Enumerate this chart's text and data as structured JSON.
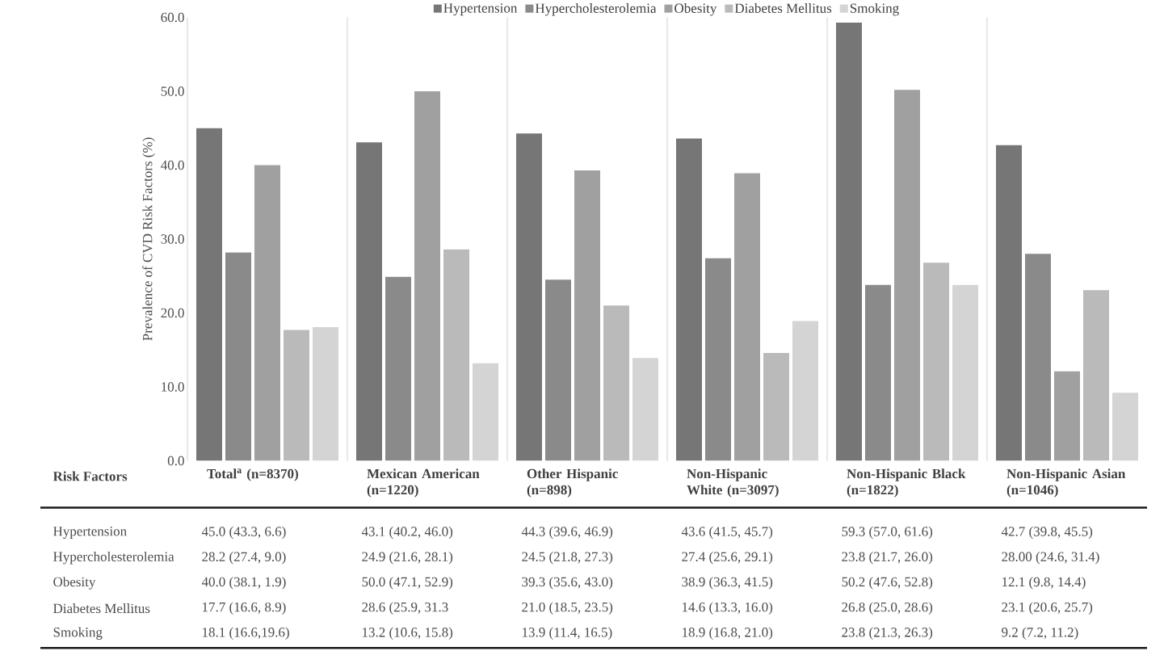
{
  "chart_data": {
    "type": "bar",
    "ylabel": "Prevalence of CVD Risk Factors (%)",
    "categories": [
      "Total$^{a}$ (n=8370)",
      "Mexican American (n=1220)",
      "Other Hispanic (n=898)",
      "Non-Hispanic White (n=3097)",
      "Non-Hispanic Black (n=1822)",
      "Non-Hispanic Asian (n=1046)"
    ],
    "series": [
      {
        "name": "Hypertension",
        "color": "#767676",
        "values": [
          45.0,
          43.1,
          44.3,
          43.6,
          59.3,
          42.7
        ],
        "value_labels": [
          "45.0 (43.3, 6.6)",
          "43.1 (40.2, 46.0)",
          "44.3 (39.6, 46.9)",
          "43.6 (41.5, 45.7)",
          "59.3 (57.0, 61.6)",
          "42.7 (39.8, 45.5)"
        ]
      },
      {
        "name": "Hypercholesterolemia",
        "color": "#8a8a8a",
        "values": [
          28.2,
          24.9,
          24.5,
          27.4,
          23.8,
          28.0
        ],
        "value_labels": [
          "28.2 (27.4, 9.0)",
          "24.9 (21.6, 28.1)",
          "24.5 (21.8, 27.3)",
          "27.4 (25.6, 29.1)",
          "23.8 (21.7, 26.0)",
          "28.00 (24.6, 31.4)"
        ]
      },
      {
        "name": "Obesity",
        "color": "#a0a0a0",
        "values": [
          40.0,
          50.0,
          39.3,
          38.9,
          50.2,
          12.1
        ],
        "value_labels": [
          "40.0 (38.1, 1.9)",
          "50.0 (47.1, 52.9)",
          "39.3 (35.6, 43.0)",
          "38.9 (36.3, 41.5)",
          "50.2 (47.6, 52.8)",
          "12.1 (9.8, 14.4)"
        ]
      },
      {
        "name": "Diabetes Mellitus",
        "color": "#bababa",
        "values": [
          17.7,
          28.6,
          21.0,
          14.6,
          26.8,
          23.1
        ],
        "value_labels": [
          "17.7 (16.6, 8.9)",
          "28.6 (25.9, 31.3",
          "21.0 (18.5, 23.5)",
          "14.6 (13.3, 16.0)",
          "26.8 (25.0, 28.6)",
          "23.1 (20.6, 25.7)"
        ]
      },
      {
        "name": "Smoking",
        "color": "#d4d4d4",
        "values": [
          18.1,
          13.2,
          13.9,
          18.9,
          23.8,
          9.2
        ],
        "value_labels": [
          "18.1 (16.6,19.6)",
          "13.2 (10.6, 15.8)",
          "13.9 (11.4, 16.5)",
          "18.9 (16.8, 21.0)",
          "23.8 (21.3, 26.3)",
          "9.2 (7.2, 11.2)"
        ]
      }
    ],
    "ylim": [
      0,
      60
    ],
    "yticks": [
      {
        "value": 0,
        "label": "0.0"
      },
      {
        "value": 10,
        "label": "10.0"
      },
      {
        "value": 20,
        "label": "20.0"
      },
      {
        "value": 30,
        "label": "30.0"
      },
      {
        "value": 40,
        "label": "40.0"
      },
      {
        "value": 50,
        "label": "50.0"
      },
      {
        "value": 60,
        "label": "60.0"
      }
    ],
    "grid": "x",
    "legend": "top",
    "annotations": [
      "Risk Factors"
    ]
  }
}
